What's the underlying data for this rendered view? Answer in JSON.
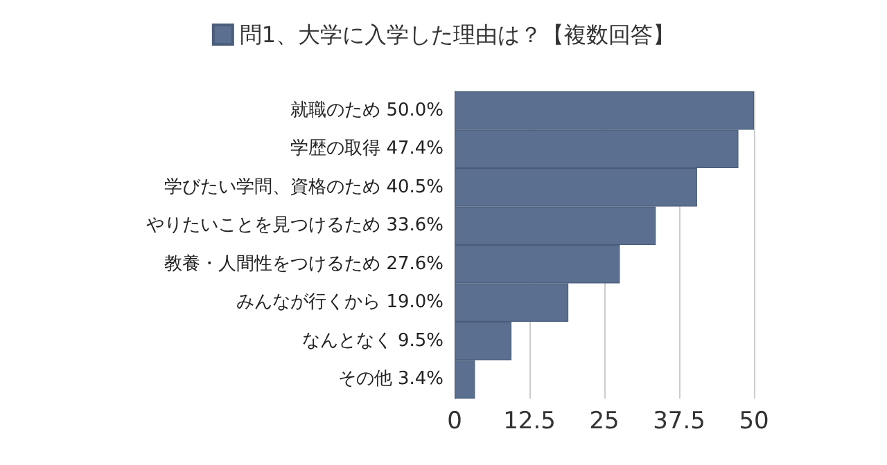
{
  "chart_data": {
    "type": "bar",
    "orientation": "horizontal",
    "categories": [
      "就職のため 50.0%",
      "学歴の取得 47.4%",
      "学びたい学問、資格のため 40.5%",
      "やりたいことを見つけるため 33.6%",
      "教養・人間性をつけるため 27.6%",
      "みんなが行くから 19.0%",
      "なんとなく 9.5%",
      "その他 3.4%"
    ],
    "series": [
      {
        "name": "問1、大学に入学した理由は？【複数回答】",
        "color": "#5b7090",
        "values": [
          50.0,
          47.4,
          40.5,
          33.6,
          27.6,
          19.0,
          9.5,
          3.4
        ]
      }
    ],
    "xlim": [
      0,
      50
    ],
    "xticks": [
      0,
      12.5,
      25,
      37.5,
      50
    ],
    "grid": "x",
    "legend": "top"
  }
}
